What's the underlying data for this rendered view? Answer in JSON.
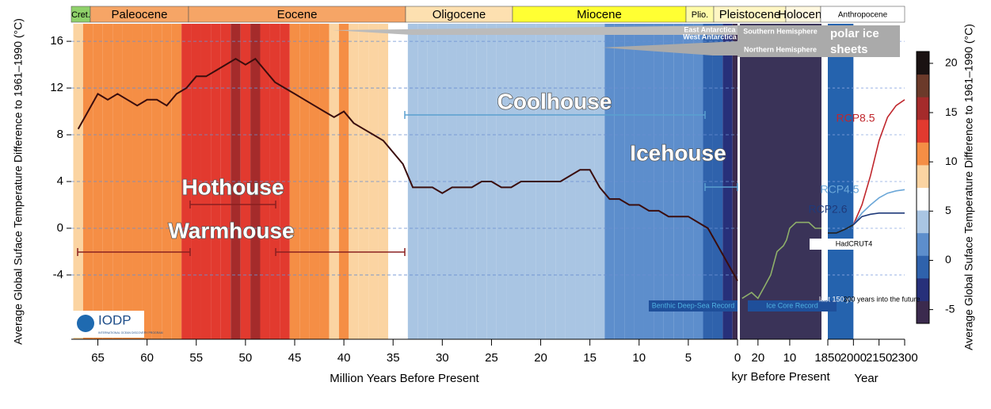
{
  "epochs": [
    {
      "label": "Cret.",
      "color": "#8fd16a"
    },
    {
      "label": "Paleocene",
      "color": "#f6a566"
    },
    {
      "label": "Eocene",
      "color": "#f6a566"
    },
    {
      "label": "Oligocene",
      "color": "#fde0b0"
    },
    {
      "label": "Miocene",
      "color": "#ffff33"
    },
    {
      "label": "Plio.",
      "color": "#fffba8"
    },
    {
      "label": "Pleistocene",
      "color": "#fff6c4"
    },
    {
      "label": "Holocene",
      "color": "#fff8e0"
    },
    {
      "label": "Anthropocene",
      "color": "#ffffff"
    }
  ],
  "chart_data": [
    {
      "type": "line",
      "x": [
        67,
        66,
        65,
        64,
        63,
        62,
        61,
        60,
        59,
        58,
        57,
        56,
        55,
        54,
        53,
        52,
        51,
        50,
        49,
        48,
        47,
        46,
        45,
        44,
        43,
        42,
        41,
        40,
        39,
        38,
        37,
        36,
        35,
        34,
        33,
        32,
        31,
        30,
        29,
        28,
        27,
        26,
        25,
        24,
        23,
        22,
        21,
        20,
        19,
        18,
        17,
        16,
        15,
        14,
        13,
        12,
        11,
        10,
        9,
        8,
        7,
        6,
        5,
        4,
        3,
        2,
        1,
        0
      ],
      "series": [
        {
          "name": "Benthic Deep-Sea Record",
          "color": "#3a0d0d",
          "values": [
            8.5,
            10,
            11.5,
            11,
            11.5,
            11,
            10.5,
            11,
            11,
            10.5,
            11.5,
            12,
            13,
            13,
            13.5,
            14,
            14.5,
            14,
            14.5,
            13.5,
            12.5,
            12,
            11.5,
            11,
            10.5,
            10,
            9.5,
            10,
            9,
            8.5,
            8,
            7.5,
            6.5,
            5.5,
            3.5,
            3.5,
            3.5,
            3,
            3.5,
            3.5,
            3.5,
            4,
            4,
            3.5,
            3.5,
            4,
            4,
            4,
            4,
            4,
            4.5,
            5,
            5,
            3.5,
            2.5,
            2.5,
            2,
            2,
            1.5,
            1.5,
            1,
            1,
            1,
            0.5,
            0,
            -1.5,
            -3,
            -4.5
          ]
        }
      ],
      "xlim": [
        67.7,
        0
      ],
      "xticks": [
        65,
        60,
        55,
        50,
        45,
        40,
        35,
        30,
        25,
        20,
        15,
        10,
        5,
        0
      ],
      "ylim": [
        -9.5,
        17.5
      ],
      "yticks": [
        16,
        12,
        8,
        4,
        0,
        -4
      ],
      "xlabel": "Million Years Before Present",
      "ylabel": "Average Global Suface Temperature Difference to 1961–1990 (°C)"
    },
    {
      "type": "line",
      "x": [
        25,
        22,
        20,
        18,
        16,
        14,
        12,
        11,
        10,
        8,
        6,
        4,
        2,
        0
      ],
      "series": [
        {
          "name": "Ice Core Record",
          "color": "#8fb06a",
          "values": [
            -6,
            -5.5,
            -6,
            -5,
            -4,
            -2,
            -1.5,
            -1,
            0,
            0.5,
            0.5,
            0.5,
            0,
            0
          ]
        }
      ],
      "xlim": [
        25.7,
        0
      ],
      "xticks": [
        20,
        10
      ],
      "ylim": [
        -9.5,
        17.5
      ],
      "xlabel": "kyr Before Present"
    },
    {
      "type": "line",
      "x": [
        1850,
        1900,
        1950,
        2000,
        2050,
        2100,
        2150,
        2200,
        2250,
        2300
      ],
      "series": [
        {
          "name": "HadCRUT4",
          "color": "#222222",
          "values": [
            -0.4,
            -0.4,
            -0.1,
            0.3,
            null,
            null,
            null,
            null,
            null,
            null
          ]
        },
        {
          "name": "RCP8.5",
          "color": "#c0272d",
          "values": [
            null,
            null,
            null,
            0.3,
            2,
            4.5,
            7.5,
            9.5,
            10.5,
            11
          ]
        },
        {
          "name": "RCP4.5",
          "color": "#6ba7d8",
          "values": [
            null,
            null,
            null,
            0.3,
            1.3,
            2,
            2.6,
            3,
            3.2,
            3.3
          ]
        },
        {
          "name": "RCP2.6",
          "color": "#1f3a7a",
          "values": [
            null,
            null,
            null,
            0.3,
            1,
            1.2,
            1.3,
            1.3,
            1.3,
            1.3
          ]
        }
      ],
      "xlim": [
        1850,
        2300
      ],
      "xticks": [
        1850,
        2000,
        2150,
        2300
      ],
      "ylim": [
        -9.5,
        17.5
      ],
      "xlabel": "Year"
    }
  ],
  "colorbar": {
    "lim": [
      -6.4,
      21.2
    ],
    "ticks": [
      -5,
      0,
      5,
      10,
      15,
      20
    ],
    "colors": [
      "#3b2a4e",
      "#27307a",
      "#2f62ac",
      "#5d8ecc",
      "#a9c5e3",
      "#ffffff",
      "#fbd4a2",
      "#f58e45",
      "#e23a2f",
      "#a52b2b",
      "#6b3a2a",
      "#1a1212"
    ],
    "label": "Average Global Suface Temperature Difference to 1961–1990 (°C)"
  },
  "annotations": {
    "hothouse": "Hothouse",
    "warmhouse": "Warmhouse",
    "coolhouse": "Coolhouse",
    "icehouse": "Icehouse",
    "east": "East Antarctica",
    "west": "West Antarctica",
    "south": "Southern Hemisphere",
    "north": "Northern Hemisphere",
    "polar": "polar ice",
    "sheets": "sheets",
    "last": "last 150 years",
    "future": "300 years into the future"
  },
  "logo": {
    "text": "IODP",
    "subtitle": "INTERNATIONAL OCEAN DISCOVERY PROGRAM"
  }
}
